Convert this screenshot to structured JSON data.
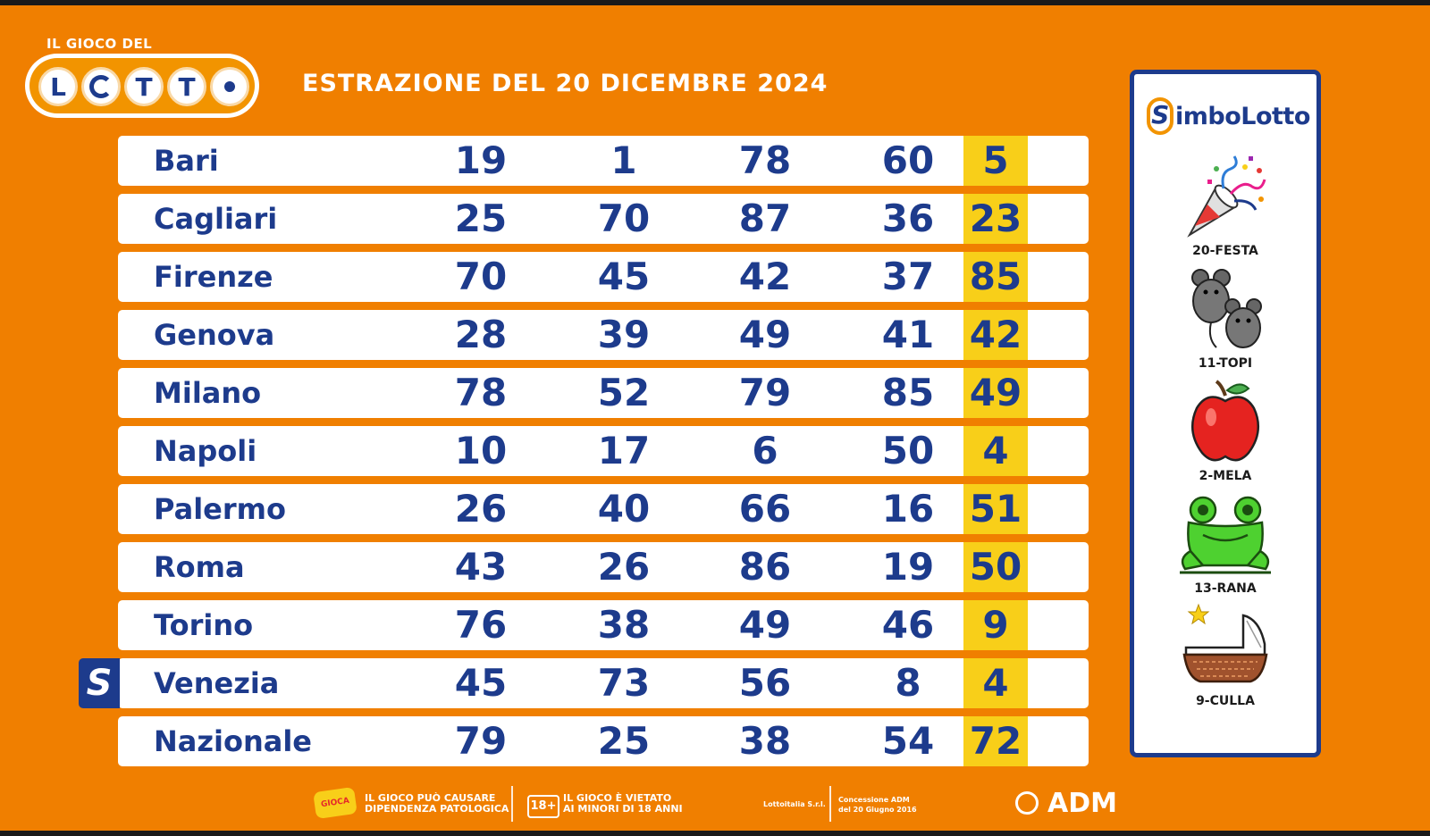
{
  "logo": {
    "top_text": "IL GIOCO DEL",
    "letters": [
      "L",
      "",
      "T",
      "T",
      ""
    ]
  },
  "title": "ESTRAZIONE DEL 20 DICEMBRE 2024",
  "draws": [
    {
      "city": "Bari",
      "numbers": [
        "19",
        "1",
        "78",
        "60",
        "5"
      ]
    },
    {
      "city": "Cagliari",
      "numbers": [
        "25",
        "70",
        "87",
        "36",
        "23"
      ]
    },
    {
      "city": "Firenze",
      "numbers": [
        "70",
        "45",
        "42",
        "37",
        "85"
      ]
    },
    {
      "city": "Genova",
      "numbers": [
        "28",
        "39",
        "49",
        "41",
        "42"
      ]
    },
    {
      "city": "Milano",
      "numbers": [
        "78",
        "52",
        "79",
        "85",
        "49"
      ]
    },
    {
      "city": "Napoli",
      "numbers": [
        "10",
        "17",
        "6",
        "50",
        "4"
      ]
    },
    {
      "city": "Palermo",
      "numbers": [
        "26",
        "40",
        "66",
        "16",
        "51"
      ]
    },
    {
      "city": "Roma",
      "numbers": [
        "43",
        "26",
        "86",
        "19",
        "50"
      ]
    },
    {
      "city": "Torino",
      "numbers": [
        "76",
        "38",
        "49",
        "46",
        "9"
      ]
    },
    {
      "city": "Venezia",
      "numbers": [
        "45",
        "73",
        "56",
        "8",
        "4"
      ],
      "badge": "S"
    },
    {
      "city": "Nazionale",
      "numbers": [
        "79",
        "25",
        "38",
        "54",
        "72"
      ]
    }
  ],
  "simbolotto": {
    "title_s": "S",
    "title_rest": "imboLotto",
    "symbols": [
      {
        "label": "20-FESTA",
        "icon": "party-popper-icon"
      },
      {
        "label": "11-TOPI",
        "icon": "mice-icon"
      },
      {
        "label": "2-MELA",
        "icon": "apple-icon"
      },
      {
        "label": "13-RANA",
        "icon": "frog-icon"
      },
      {
        "label": "9-CULLA",
        "icon": "cradle-icon"
      }
    ]
  },
  "footer": {
    "warning_line1": "IL GIOCO PUÒ CAUSARE",
    "warning_line2": "DIPENDENZA PATOLOGICA",
    "age_badge": "18+",
    "age_line1": "IL GIOCO È VIETATO",
    "age_line2": "AI MINORI DI 18 ANNI",
    "company": "Lottoitalia S.r.l.",
    "concession_line1": "Concessione ADM",
    "concession_line2": "del 20 Giugno 2016",
    "adm": "ADM"
  },
  "colors": {
    "background": "#f07f00",
    "navy": "#1d3b8c",
    "highlight": "#f8cf19"
  }
}
